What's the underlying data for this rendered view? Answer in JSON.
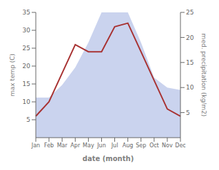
{
  "chart_data": {
    "type": "line",
    "categories": [
      "Jan",
      "Feb",
      "Mar",
      "Apr",
      "May",
      "Jun",
      "Jul",
      "Aug",
      "Sep",
      "Oct",
      "Nov",
      "Dec"
    ],
    "xlabel": "date (month)",
    "ylabel": "max temp (C)",
    "y2label": "med. precipitation (kg/m2)",
    "ylim": [
      0,
      35
    ],
    "yticks": [
      5,
      10,
      15,
      20,
      25,
      30,
      35
    ],
    "y2lim": [
      0,
      25
    ],
    "y2ticks": [
      5,
      10,
      15,
      20,
      25
    ],
    "grid": false,
    "series": [
      {
        "type": "area",
        "color": "#b8c4e8",
        "axis": "y2",
        "values": [
          8.0,
          8.0,
          10.5,
          14.0,
          19.0,
          25.0,
          25.0,
          25.0,
          19.0,
          12.0,
          10.0,
          9.5
        ]
      },
      {
        "type": "line",
        "color": "#a83232",
        "values": [
          6.0,
          10.0,
          18.0,
          26.0,
          24.0,
          24.0,
          31.0,
          32.0,
          24.0,
          16.0,
          8.0,
          6.0
        ]
      }
    ]
  }
}
